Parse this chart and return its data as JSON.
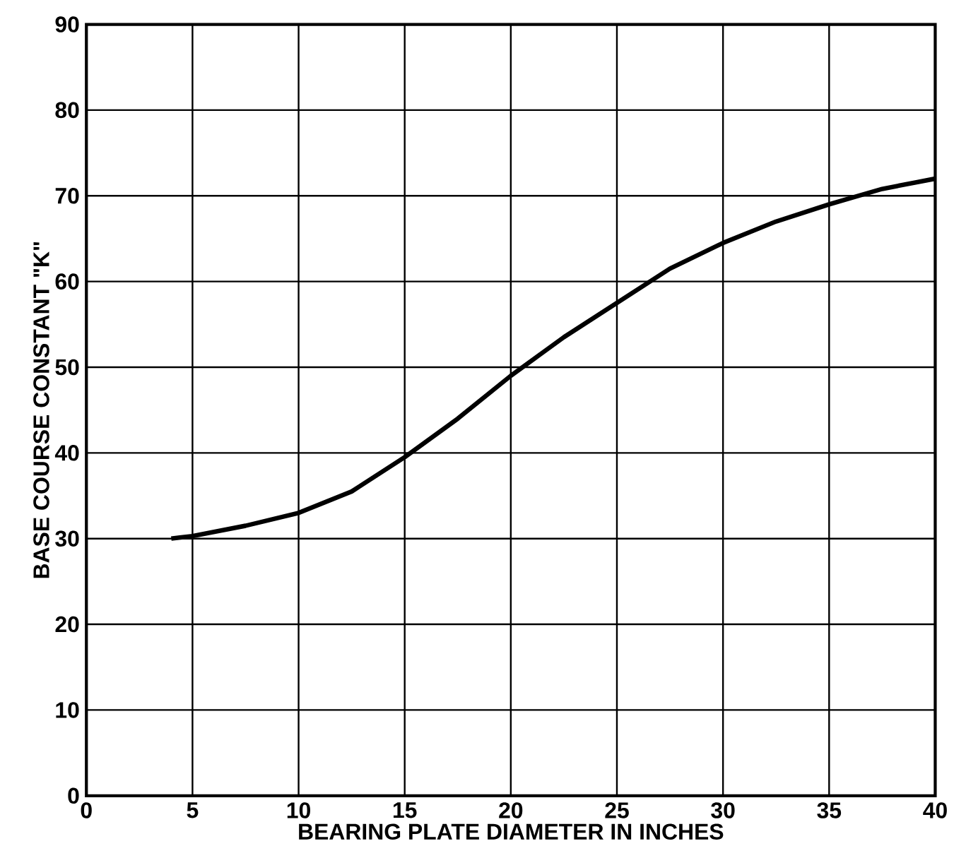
{
  "chart_data": {
    "type": "line",
    "xlabel": "BEARING PLATE DIAMETER IN INCHES",
    "ylabel": "BASE COURSE CONSTANT \"K\"",
    "x": [
      4,
      5,
      7.5,
      10,
      12.5,
      15,
      17.5,
      20,
      22.5,
      25,
      27.5,
      30,
      32.5,
      35,
      37.5,
      40
    ],
    "values": [
      30,
      30.3,
      31.5,
      33,
      35.5,
      39.5,
      44,
      49,
      53.5,
      57.5,
      61.5,
      64.5,
      67,
      69,
      70.8,
      72
    ],
    "color": "#000000",
    "xlim": [
      0,
      40
    ],
    "ylim": [
      0,
      90
    ],
    "xticks": [
      0,
      5,
      10,
      15,
      20,
      25,
      30,
      35,
      40
    ],
    "yticks": [
      0,
      10,
      20,
      30,
      40,
      50,
      60,
      70,
      80,
      90
    ],
    "grid": true
  }
}
